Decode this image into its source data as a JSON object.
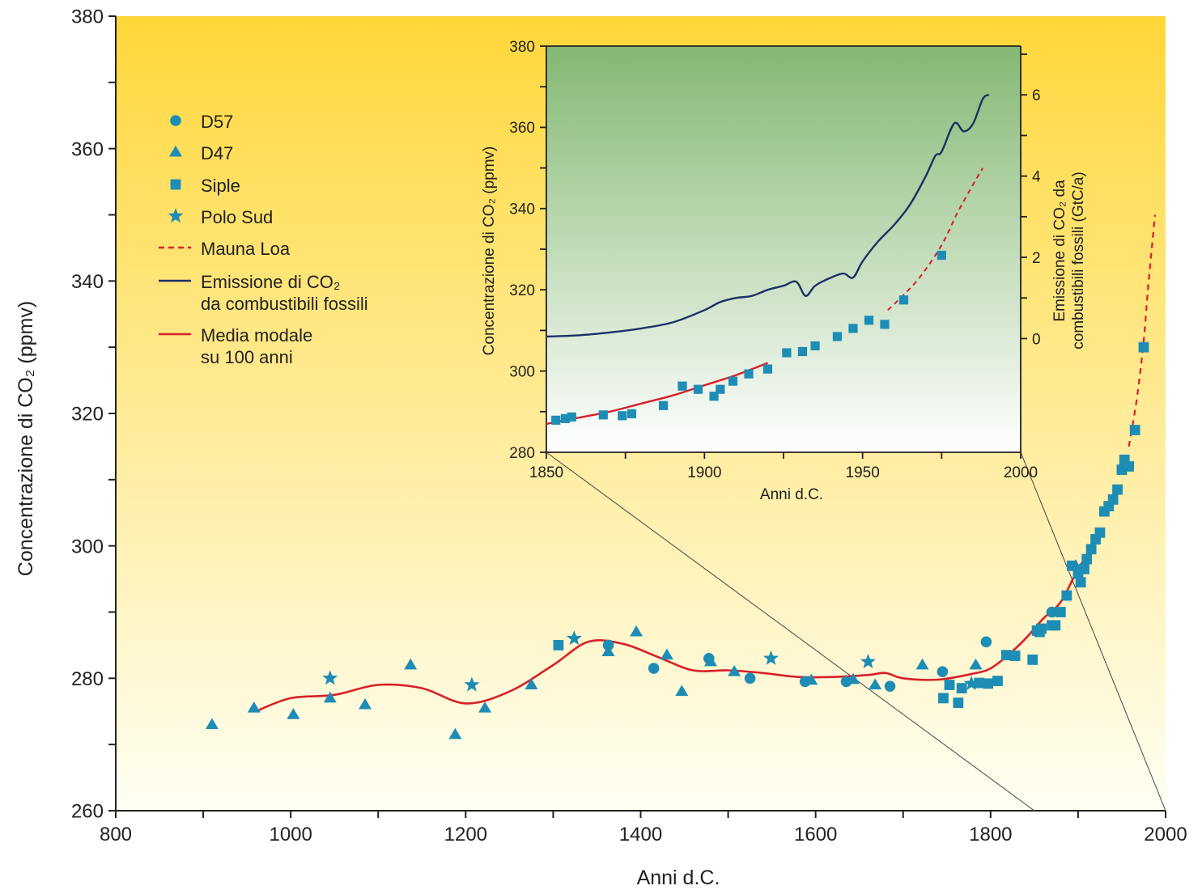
{
  "colors": {
    "marker": "#1d8db5",
    "smooth": "#d8202a",
    "mauna_loa": "#d8202a",
    "emission": "#1c2f66",
    "bg_top": "#ffd73a",
    "bg_bottom": "#fffff4",
    "inset_top": "#84b872",
    "inset_bottom": "#ffffff",
    "axis": "#222222"
  },
  "legend": [
    {
      "label": "D57",
      "symbol": "circle-icon"
    },
    {
      "label": "D47",
      "symbol": "triangle-icon"
    },
    {
      "label": "Siple",
      "symbol": "square-icon"
    },
    {
      "label": "Polo Sud",
      "symbol": "star-icon"
    },
    {
      "label": "Mauna Loa",
      "symbol": "dashed-line-icon"
    },
    {
      "label": "Emissione di CO₂",
      "label2": "da combustibili fossili",
      "symbol": "line-icon"
    },
    {
      "label": "Media modale",
      "label2": "su 100 anni",
      "symbol": "line-icon"
    }
  ],
  "chart_data": [
    {
      "type": "scatter",
      "xlabel": "Anni d.C.",
      "ylabel": "Concentrazione di CO₂ (ppmv)",
      "xlim": [
        800,
        2000
      ],
      "ylim": [
        260,
        380
      ],
      "x_ticks": [
        800,
        1000,
        1200,
        1400,
        1600,
        1800,
        2000
      ],
      "y_ticks": [
        260,
        280,
        300,
        320,
        340,
        360,
        380
      ],
      "series": [
        {
          "name": "D57",
          "marker": "circle",
          "points": [
            [
              1363,
              285
            ],
            [
              1415,
              281.5
            ],
            [
              1478,
              283
            ],
            [
              1525,
              280
            ],
            [
              1588,
              279.5
            ],
            [
              1635,
              279.5
            ],
            [
              1685,
              278.8
            ],
            [
              1745,
              281
            ],
            [
              1795,
              285.5
            ],
            [
              1870,
              290
            ]
          ]
        },
        {
          "name": "D47",
          "marker": "triangle",
          "points": [
            [
              910,
              273
            ],
            [
              958,
              275.5
            ],
            [
              1003,
              274.5
            ],
            [
              1045,
              277
            ],
            [
              1085,
              276
            ],
            [
              1137,
              282
            ],
            [
              1188,
              271.5
            ],
            [
              1222,
              275.5
            ],
            [
              1275,
              279
            ],
            [
              1363,
              284
            ],
            [
              1395,
              287
            ],
            [
              1430,
              283.5
            ],
            [
              1447,
              278
            ],
            [
              1480,
              282.5
            ],
            [
              1507,
              281
            ],
            [
              1595,
              279.7
            ],
            [
              1643,
              279.8
            ],
            [
              1668,
              279
            ],
            [
              1722,
              282
            ],
            [
              1783,
              282
            ],
            [
              1897,
              297
            ]
          ]
        },
        {
          "name": "Siple",
          "marker": "square",
          "points": [
            [
              1306,
              285
            ],
            [
              1746,
              277
            ],
            [
              1753,
              279
            ],
            [
              1763,
              276.3
            ],
            [
              1767,
              278.5
            ],
            [
              1787,
              279.3
            ],
            [
              1797,
              279.2
            ],
            [
              1808,
              279.6
            ],
            [
              1818,
              283.5
            ],
            [
              1828,
              283.4
            ],
            [
              1848,
              282.8
            ],
            [
              1853,
              287.2
            ],
            [
              1856,
              287
            ],
            [
              1858,
              287.5
            ],
            [
              1870,
              288
            ],
            [
              1874,
              288
            ],
            [
              1880,
              290
            ],
            [
              1887,
              292.5
            ],
            [
              1893,
              297
            ],
            [
              1900,
              295.8
            ],
            [
              1903,
              294.5
            ],
            [
              1907,
              296.5
            ],
            [
              1910,
              298
            ],
            [
              1915,
              299.5
            ],
            [
              1920,
              301
            ],
            [
              1925,
              302
            ],
            [
              1930,
              305.2
            ],
            [
              1935,
              306
            ],
            [
              1940,
              307
            ],
            [
              1945,
              308.5
            ],
            [
              1950,
              311.5
            ],
            [
              1953,
              313
            ],
            [
              1958,
              312
            ],
            [
              1965,
              317.5
            ],
            [
              1975,
              330
            ]
          ]
        },
        {
          "name": "Polo Sud",
          "marker": "star",
          "points": [
            [
              1045,
              280
            ],
            [
              1207,
              279
            ],
            [
              1324,
              286
            ],
            [
              1549,
              283
            ],
            [
              1660,
              282.5
            ],
            [
              1778,
              279.2
            ]
          ]
        },
        {
          "name": "Media modale su 100 anni",
          "style": "line",
          "points": [
            [
              960,
              275
            ],
            [
              1000,
              277
            ],
            [
              1050,
              277.5
            ],
            [
              1100,
              279
            ],
            [
              1150,
              278.5
            ],
            [
              1200,
              276.2
            ],
            [
              1250,
              278
            ],
            [
              1300,
              282
            ],
            [
              1340,
              285.5
            ],
            [
              1380,
              285.2
            ],
            [
              1420,
              283.2
            ],
            [
              1460,
              281.2
            ],
            [
              1500,
              281.2
            ],
            [
              1540,
              280.8
            ],
            [
              1580,
              280.2
            ],
            [
              1620,
              280.2
            ],
            [
              1660,
              280.5
            ],
            [
              1680,
              280.8
            ],
            [
              1700,
              280
            ],
            [
              1740,
              279.8
            ],
            [
              1780,
              280.7
            ],
            [
              1800,
              281.5
            ],
            [
              1820,
              283.5
            ],
            [
              1840,
              286
            ],
            [
              1860,
              289
            ],
            [
              1880,
              291.5
            ],
            [
              1900,
              296.5
            ],
            [
              1915,
              299.5
            ],
            [
              1925,
              302
            ]
          ]
        },
        {
          "name": "Mauna Loa",
          "style": "dashed",
          "points": [
            [
              1958,
              315
            ],
            [
              1962,
              318
            ],
            [
              1968,
              323
            ],
            [
              1975,
              331
            ],
            [
              1980,
              339
            ],
            [
              1985,
              346
            ],
            [
              1988,
              350
            ]
          ]
        }
      ]
    },
    {
      "type": "line",
      "xlabel": "Anni d.C.",
      "ylabel": "Concentrazione di CO₂ (ppmv)",
      "ylabel_right_line1": "Emissione di CO₂ da",
      "ylabel_right_line2": "combustibili fossili (GtC/a)",
      "xlim": [
        1850,
        2000
      ],
      "ylim": [
        280,
        380
      ],
      "ylim_right": [
        -2.8,
        7.2
      ],
      "x_ticks": [
        1850,
        1900,
        1950,
        2000
      ],
      "y_ticks": [
        280,
        300,
        320,
        340,
        360,
        380
      ],
      "y_ticks_right": [
        0,
        2,
        4,
        6
      ],
      "series": [
        {
          "name": "Siple",
          "marker": "square",
          "points": [
            [
              1853,
              287.9
            ],
            [
              1856,
              288.3
            ],
            [
              1858,
              288.7
            ],
            [
              1868,
              289.2
            ],
            [
              1874,
              289
            ],
            [
              1877,
              289.5
            ],
            [
              1887,
              291.5
            ],
            [
              1893,
              296.3
            ],
            [
              1898,
              295.5
            ],
            [
              1903,
              293.8
            ],
            [
              1905,
              295.5
            ],
            [
              1909,
              297.5
            ],
            [
              1914,
              299.3
            ],
            [
              1920,
              300.5
            ],
            [
              1926,
              304.5
            ],
            [
              1931,
              304.8
            ],
            [
              1935,
              306.2
            ],
            [
              1942,
              308.5
            ],
            [
              1947,
              310.5
            ],
            [
              1952,
              312.5
            ],
            [
              1957,
              311.5
            ],
            [
              1963,
              317.5
            ],
            [
              1975,
              328.5
            ]
          ]
        },
        {
          "name": "Media modale su 100 anni",
          "style": "line",
          "points": [
            [
              1850,
              287
            ],
            [
              1860,
              288.5
            ],
            [
              1870,
              290
            ],
            [
              1880,
              292
            ],
            [
              1890,
              294
            ],
            [
              1900,
              296.5
            ],
            [
              1910,
              299
            ],
            [
              1920,
              302
            ]
          ]
        },
        {
          "name": "Mauna Loa",
          "style": "dashed",
          "points": [
            [
              1958,
              315
            ],
            [
              1962,
              318
            ],
            [
              1968,
              323
            ],
            [
              1975,
              331
            ],
            [
              1980,
              339
            ],
            [
              1985,
              346
            ],
            [
              1988,
              350
            ]
          ]
        },
        {
          "name": "Emissione di CO₂ da combustibili fossili",
          "style": "line",
          "axis": "right",
          "points": [
            [
              1850,
              0.05
            ],
            [
              1860,
              0.08
            ],
            [
              1870,
              0.15
            ],
            [
              1880,
              0.25
            ],
            [
              1890,
              0.4
            ],
            [
              1900,
              0.7
            ],
            [
              1905,
              0.9
            ],
            [
              1910,
              1.0
            ],
            [
              1915,
              1.05
            ],
            [
              1920,
              1.2
            ],
            [
              1925,
              1.3
            ],
            [
              1929,
              1.4
            ],
            [
              1932,
              1.05
            ],
            [
              1935,
              1.3
            ],
            [
              1940,
              1.5
            ],
            [
              1944,
              1.6
            ],
            [
              1947,
              1.5
            ],
            [
              1950,
              1.9
            ],
            [
              1955,
              2.4
            ],
            [
              1960,
              2.8
            ],
            [
              1965,
              3.3
            ],
            [
              1970,
              4.0
            ],
            [
              1973,
              4.5
            ],
            [
              1975,
              4.6
            ],
            [
              1979,
              5.3
            ],
            [
              1982,
              5.1
            ],
            [
              1985,
              5.3
            ],
            [
              1988,
              5.9
            ],
            [
              1990,
              6.0
            ]
          ]
        }
      ]
    }
  ]
}
